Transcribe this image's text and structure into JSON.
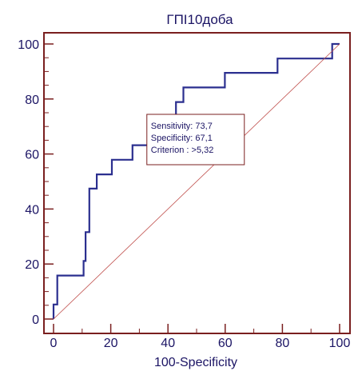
{
  "chart_data": {
    "type": "line",
    "title": "ГПІ10доба",
    "xlabel": "100-Specificity",
    "ylabel": "",
    "xlim": [
      0,
      100
    ],
    "ylim": [
      0,
      100
    ],
    "x_ticks": [
      "0",
      "20",
      "40",
      "60",
      "80",
      "100"
    ],
    "y_ticks": [
      "0",
      "20",
      "40",
      "60",
      "80",
      "100"
    ],
    "grid": false,
    "series": [
      {
        "name": "",
        "style": "step",
        "points": [
          [
            0,
            0
          ],
          [
            0,
            5.3
          ],
          [
            1.3,
            5.3
          ],
          [
            1.3,
            15.8
          ],
          [
            10.5,
            15.8
          ],
          [
            10.5,
            21.1
          ],
          [
            11.2,
            21.1
          ],
          [
            11.2,
            31.6
          ],
          [
            12.5,
            31.6
          ],
          [
            12.5,
            47.4
          ],
          [
            15.1,
            47.4
          ],
          [
            15.1,
            52.6
          ],
          [
            20.4,
            52.6
          ],
          [
            20.4,
            57.9
          ],
          [
            27.6,
            57.9
          ],
          [
            27.6,
            63.2
          ],
          [
            32.9,
            63.2
          ],
          [
            32.9,
            73.7
          ],
          [
            42.8,
            73.7
          ],
          [
            42.8,
            78.9
          ],
          [
            45.4,
            78.9
          ],
          [
            45.4,
            84.2
          ],
          [
            59.9,
            84.2
          ],
          [
            59.9,
            89.5
          ],
          [
            78.3,
            89.5
          ],
          [
            78.3,
            94.7
          ],
          [
            97.4,
            94.7
          ],
          [
            97.4,
            100
          ],
          [
            100,
            100
          ]
        ]
      },
      {
        "name": "",
        "style": "diagonal",
        "points": [
          [
            0,
            0
          ],
          [
            100,
            100
          ]
        ]
      }
    ],
    "annotation": {
      "lines": [
        "Sensitivity: 73,7",
        "Specificity: 67,1",
        "Criterion : >5,32"
      ],
      "point": [
        32.9,
        73.7
      ]
    },
    "colors": {
      "roc_line": "#2b2f8f",
      "diagonal": "#c0504d",
      "frame": "#7a1f1f",
      "text": "#1b1464"
    }
  }
}
